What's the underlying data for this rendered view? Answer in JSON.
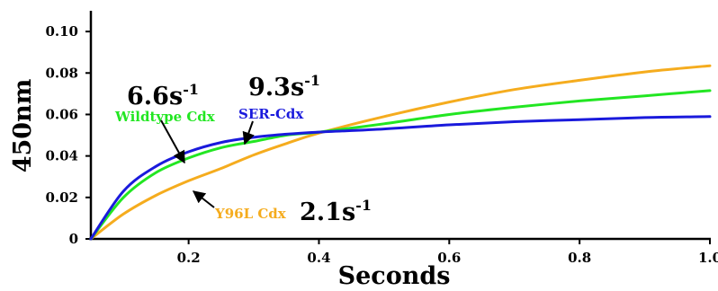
{
  "chart_data": {
    "type": "line",
    "title": "",
    "xlabel": "Seconds",
    "ylabel": "450nm",
    "xlim": [
      0.05,
      1.0
    ],
    "ylim": [
      0,
      0.11
    ],
    "x_ticks": [
      "0.2",
      "0.4",
      "0.6",
      "0.8",
      "1.0"
    ],
    "y_ticks": [
      "0",
      "0.02",
      "0.04",
      "0.06",
      "0.08",
      "0.10"
    ],
    "grid": false,
    "series": [
      {
        "name": "Wildtype Cdx",
        "color": "#22e622",
        "rate": "6.6",
        "x": [
          0.05,
          0.1,
          0.15,
          0.2,
          0.25,
          0.3,
          0.35,
          0.4,
          0.5,
          0.6,
          0.7,
          0.8,
          0.9,
          1.0
        ],
        "y": [
          0.0,
          0.02,
          0.032,
          0.039,
          0.044,
          0.047,
          0.05,
          0.0515,
          0.0555,
          0.06,
          0.0635,
          0.0665,
          0.069,
          0.0715
        ]
      },
      {
        "name": "SER-Cdx",
        "color": "#1a1adc",
        "rate": "9.3",
        "x": [
          0.05,
          0.1,
          0.15,
          0.2,
          0.25,
          0.3,
          0.35,
          0.4,
          0.5,
          0.6,
          0.7,
          0.8,
          0.9,
          1.0
        ],
        "y": [
          0.0,
          0.023,
          0.035,
          0.042,
          0.0465,
          0.049,
          0.0505,
          0.0515,
          0.053,
          0.055,
          0.0565,
          0.0575,
          0.0585,
          0.059
        ]
      },
      {
        "name": "Y96L Cdx",
        "color": "#f5ac1e",
        "rate": "2.1",
        "x": [
          0.05,
          0.1,
          0.15,
          0.2,
          0.25,
          0.3,
          0.35,
          0.4,
          0.5,
          0.6,
          0.7,
          0.8,
          0.9,
          1.0
        ],
        "y": [
          0.0,
          0.012,
          0.021,
          0.028,
          0.034,
          0.0405,
          0.046,
          0.051,
          0.059,
          0.066,
          0.072,
          0.0765,
          0.0805,
          0.0835
        ]
      }
    ]
  }
}
